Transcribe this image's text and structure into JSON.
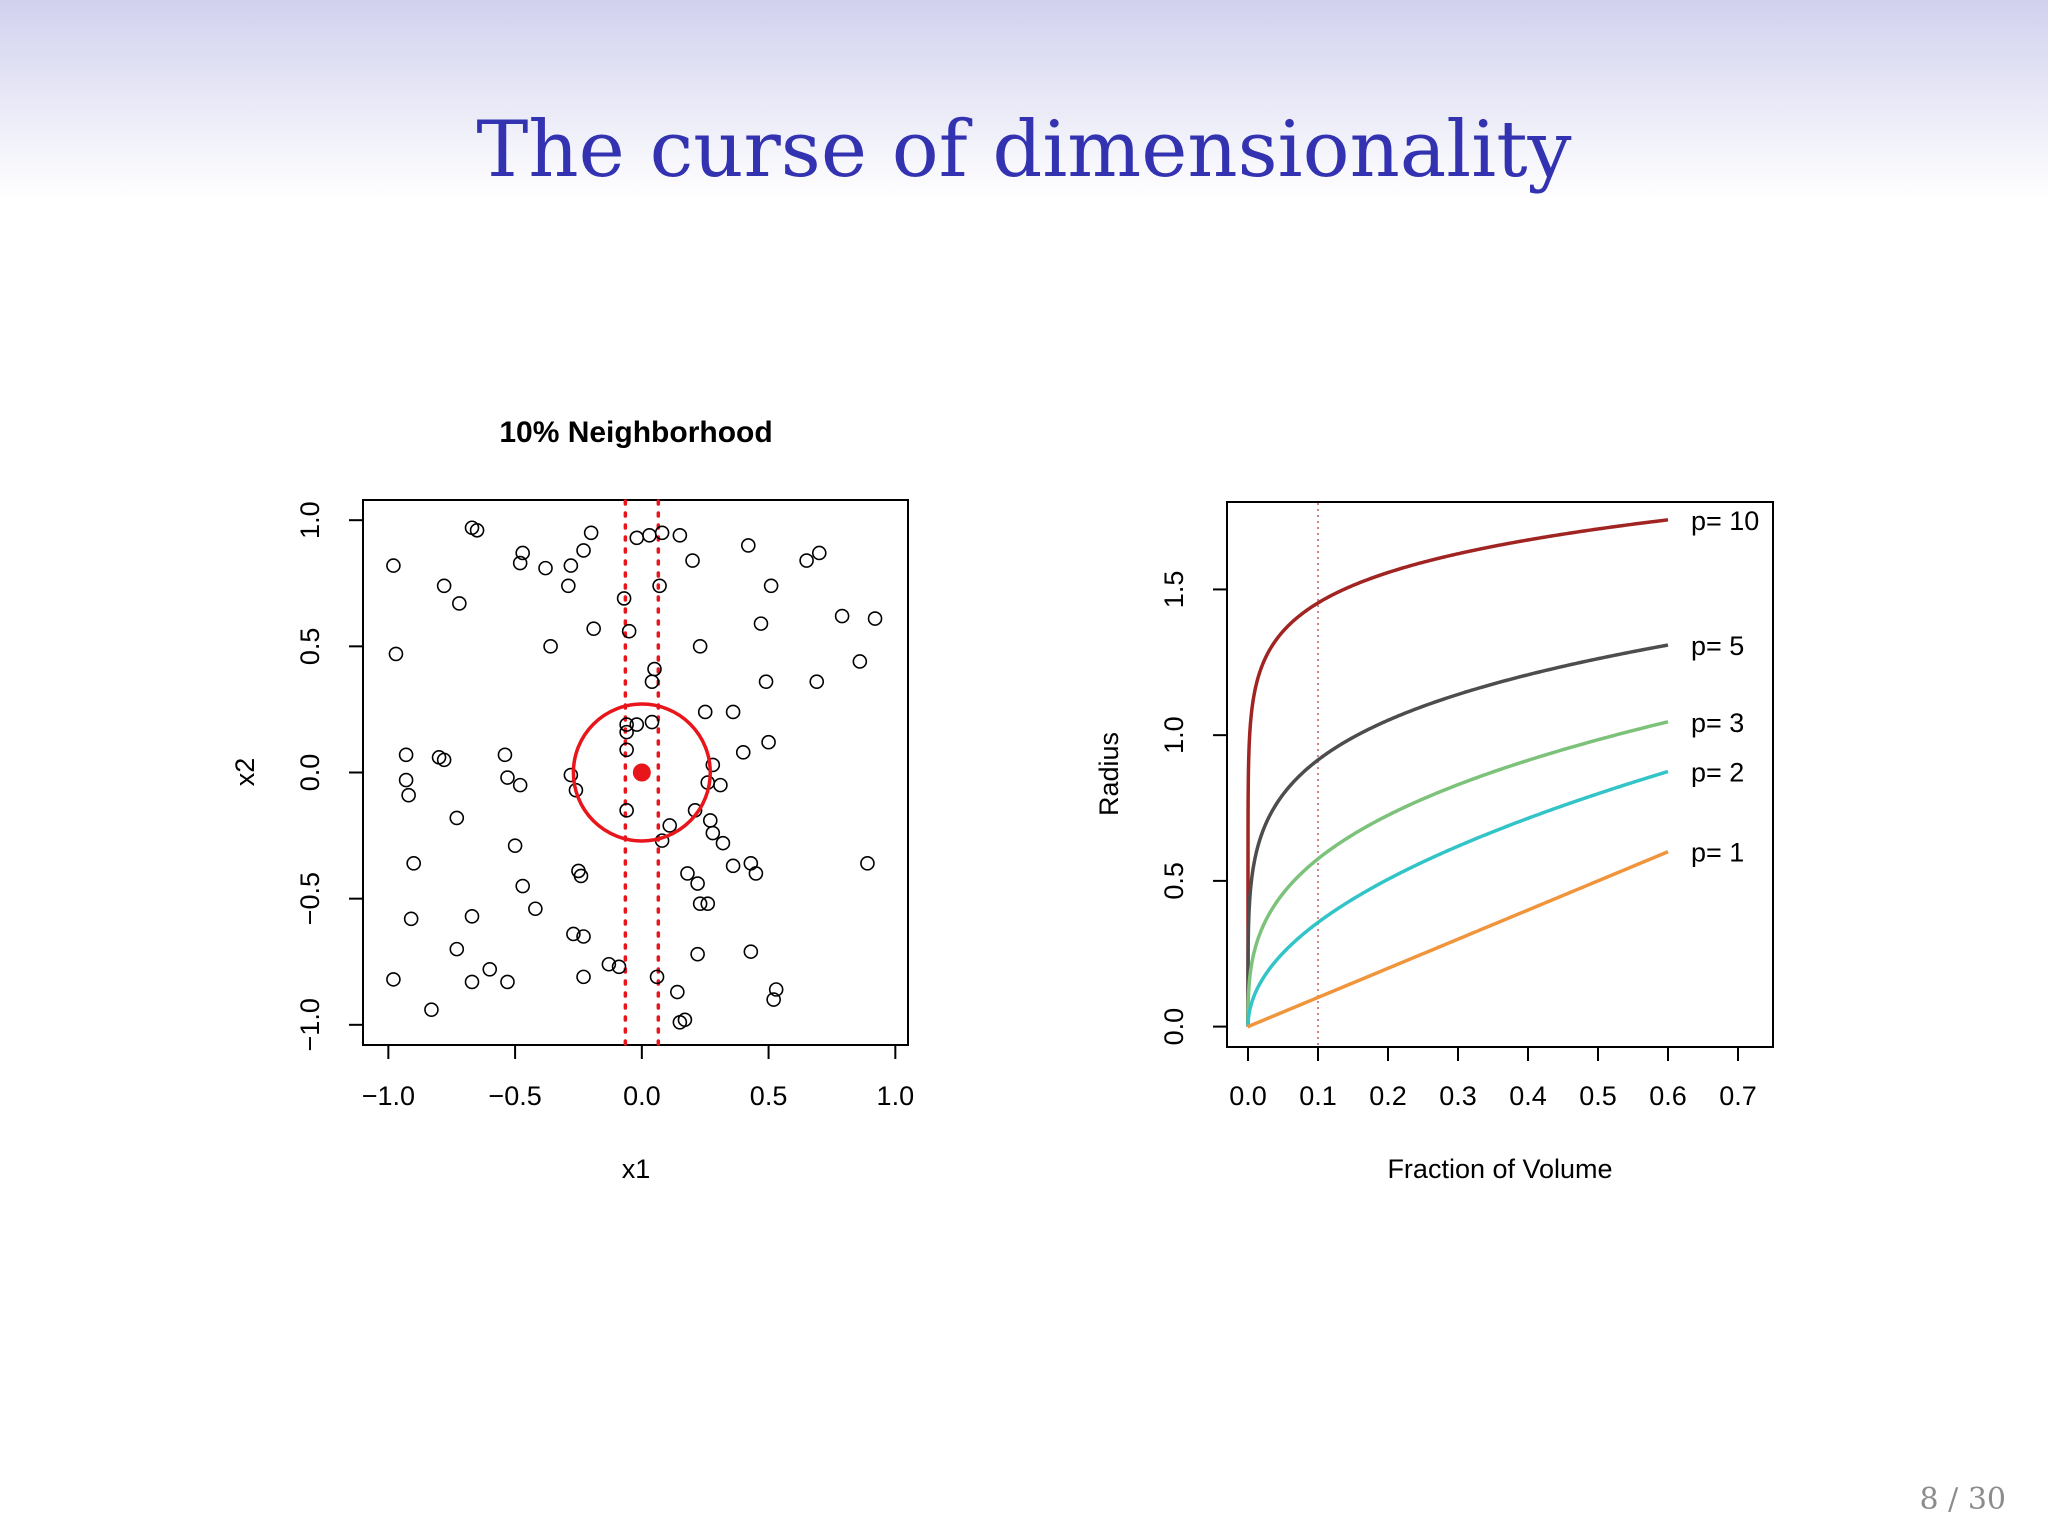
{
  "slide": {
    "title": "The curse of dimensionality",
    "page_number": "8 / 30",
    "title_color": "#3333b2"
  },
  "chart_data": [
    {
      "type": "scatter",
      "title": "10% Neighborhood",
      "xlabel": "x1",
      "ylabel": "x2",
      "xlim": [
        -1.1,
        1.05
      ],
      "ylim": [
        -1.08,
        1.08
      ],
      "x_ticks": [
        -1.0,
        -0.5,
        0.0,
        0.5,
        1.0
      ],
      "x_tick_labels": [
        "−1.0",
        "−0.5",
        "0.0",
        "0.5",
        "1.0"
      ],
      "y_ticks": [
        -1.0,
        -0.5,
        0.0,
        0.5,
        1.0
      ],
      "y_tick_labels": [
        "−1.0",
        "−0.5",
        "0.0",
        "0.5",
        "1.0"
      ],
      "highlight_color": "#e8151b",
      "center_point": [
        0.0,
        0.0
      ],
      "circle_radius": 0.27,
      "vertical_lines_x": [
        -0.065,
        0.065
      ],
      "points": [
        [
          -0.98,
          0.82
        ],
        [
          -0.97,
          0.47
        ],
        [
          -0.67,
          0.97
        ],
        [
          -0.65,
          0.96
        ],
        [
          -0.78,
          0.74
        ],
        [
          -0.72,
          0.67
        ],
        [
          -0.47,
          0.87
        ],
        [
          -0.48,
          0.83
        ],
        [
          -0.38,
          0.81
        ],
        [
          -0.28,
          0.82
        ],
        [
          -0.23,
          0.88
        ],
        [
          -0.2,
          0.95
        ],
        [
          -0.29,
          0.74
        ],
        [
          -0.36,
          0.5
        ],
        [
          -0.19,
          0.57
        ],
        [
          -0.07,
          0.69
        ],
        [
          -0.05,
          0.56
        ],
        [
          -0.02,
          0.93
        ],
        [
          0.03,
          0.94
        ],
        [
          0.08,
          0.95
        ],
        [
          0.15,
          0.94
        ],
        [
          0.2,
          0.84
        ],
        [
          0.07,
          0.74
        ],
        [
          0.05,
          0.41
        ],
        [
          0.04,
          0.36
        ],
        [
          0.23,
          0.5
        ],
        [
          0.42,
          0.9
        ],
        [
          0.51,
          0.74
        ],
        [
          0.47,
          0.59
        ],
        [
          0.65,
          0.84
        ],
        [
          0.7,
          0.87
        ],
        [
          0.79,
          0.62
        ],
        [
          0.92,
          0.61
        ],
        [
          0.86,
          0.44
        ],
        [
          0.69,
          0.36
        ],
        [
          0.49,
          0.36
        ],
        [
          0.36,
          0.24
        ],
        [
          0.25,
          0.24
        ],
        [
          0.5,
          0.12
        ],
        [
          0.4,
          0.08
        ],
        [
          0.04,
          0.2
        ],
        [
          -0.02,
          0.19
        ],
        [
          -0.06,
          0.19
        ],
        [
          -0.06,
          0.16
        ],
        [
          -0.06,
          0.09
        ],
        [
          -0.93,
          0.07
        ],
        [
          -0.8,
          0.06
        ],
        [
          -0.78,
          0.05
        ],
        [
          -0.54,
          0.07
        ],
        [
          -0.93,
          -0.03
        ],
        [
          -0.92,
          -0.09
        ],
        [
          -0.53,
          -0.02
        ],
        [
          -0.48,
          -0.05
        ],
        [
          -0.28,
          -0.01
        ],
        [
          -0.26,
          -0.07
        ],
        [
          -0.73,
          -0.18
        ],
        [
          -0.06,
          -0.15
        ],
        [
          0.28,
          0.03
        ],
        [
          0.26,
          -0.04
        ],
        [
          0.31,
          -0.05
        ],
        [
          0.21,
          -0.15
        ],
        [
          0.11,
          -0.21
        ],
        [
          0.08,
          -0.27
        ],
        [
          0.27,
          -0.19
        ],
        [
          0.28,
          -0.24
        ],
        [
          0.32,
          -0.28
        ],
        [
          -0.5,
          -0.29
        ],
        [
          -0.9,
          -0.36
        ],
        [
          -0.25,
          -0.39
        ],
        [
          -0.24,
          -0.41
        ],
        [
          -0.47,
          -0.45
        ],
        [
          -0.42,
          -0.54
        ],
        [
          -0.91,
          -0.58
        ],
        [
          -0.67,
          -0.57
        ],
        [
          -0.27,
          -0.64
        ],
        [
          -0.23,
          -0.65
        ],
        [
          0.18,
          -0.4
        ],
        [
          0.22,
          -0.44
        ],
        [
          0.23,
          -0.52
        ],
        [
          0.26,
          -0.52
        ],
        [
          0.36,
          -0.37
        ],
        [
          0.43,
          -0.36
        ],
        [
          0.45,
          -0.4
        ],
        [
          0.89,
          -0.36
        ],
        [
          -0.73,
          -0.7
        ],
        [
          -0.98,
          -0.82
        ],
        [
          -0.67,
          -0.83
        ],
        [
          -0.6,
          -0.78
        ],
        [
          -0.53,
          -0.83
        ],
        [
          -0.23,
          -0.81
        ],
        [
          -0.13,
          -0.76
        ],
        [
          -0.09,
          -0.77
        ],
        [
          0.06,
          -0.81
        ],
        [
          0.14,
          -0.87
        ],
        [
          0.22,
          -0.72
        ],
        [
          0.43,
          -0.71
        ],
        [
          0.53,
          -0.86
        ],
        [
          0.52,
          -0.9
        ],
        [
          -0.83,
          -0.94
        ],
        [
          0.15,
          -0.99
        ],
        [
          0.17,
          -0.98
        ]
      ]
    },
    {
      "type": "line",
      "xlabel": "Fraction of Volume",
      "ylabel": "Radius",
      "xlim": [
        -0.03,
        0.75
      ],
      "ylim": [
        -0.07,
        1.8
      ],
      "x_ticks": [
        0.0,
        0.1,
        0.2,
        0.3,
        0.4,
        0.5,
        0.6,
        0.7
      ],
      "x_tick_labels": [
        "0.0",
        "0.1",
        "0.2",
        "0.3",
        "0.4",
        "0.5",
        "0.6",
        "0.7"
      ],
      "y_ticks": [
        0.0,
        0.5,
        1.0,
        1.5
      ],
      "y_tick_labels": [
        "0.0",
        "0.5",
        "1.0",
        "1.5"
      ],
      "reference_line_x": 0.1,
      "reference_line_color": "#c85a5a",
      "x_range": [
        0.0,
        0.6
      ],
      "series": [
        {
          "name": "p= 10",
          "p": 10,
          "color": "#a02422"
        },
        {
          "name": "p= 5",
          "p": 5,
          "color": "#4d4d4d"
        },
        {
          "name": "p= 3",
          "p": 3,
          "color": "#7cc27a"
        },
        {
          "name": "p= 2",
          "p": 2,
          "color": "#33c4c8"
        },
        {
          "name": "p= 1",
          "p": 1,
          "color": "#f0953c"
        }
      ]
    }
  ]
}
